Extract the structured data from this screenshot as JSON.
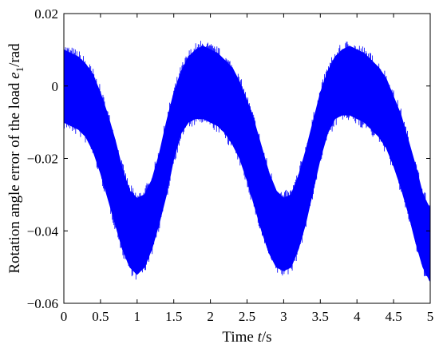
{
  "chart_data": {
    "type": "line",
    "xlabel": {
      "prefix": "Time ",
      "var": "t",
      "suffix": "/s"
    },
    "ylabel": {
      "prefix": "Rotation angle error of the load ",
      "var": "e",
      "sub": "1",
      "suffix": "/rad"
    },
    "xlim": [
      0,
      5
    ],
    "ylim": [
      -0.06,
      0.02
    ],
    "x_ticks": [
      0,
      0.5,
      1,
      1.5,
      2,
      2.5,
      3,
      3.5,
      4,
      4.5,
      5
    ],
    "x_tick_labels": [
      "0",
      "0.5",
      "1",
      "1.5",
      "2",
      "2.5",
      "3",
      "3.5",
      "4",
      "4.5",
      "5"
    ],
    "y_ticks": [
      0.02,
      0,
      -0.02,
      -0.04,
      -0.06
    ],
    "y_tick_labels": [
      "0.02",
      "0",
      "−0.02",
      "−0.04",
      "−0.06"
    ],
    "grid": false,
    "series": [
      {
        "color": "#0000ff",
        "band": {
          "x": [
            0.0,
            0.1,
            0.2,
            0.3,
            0.4,
            0.5,
            0.6,
            0.7,
            0.8,
            0.9,
            1.0,
            1.1,
            1.2,
            1.3,
            1.4,
            1.5,
            1.6,
            1.7,
            1.8,
            1.9,
            2.0,
            2.1,
            2.2,
            2.3,
            2.4,
            2.5,
            2.6,
            2.7,
            2.8,
            2.9,
            3.0,
            3.1,
            3.2,
            3.3,
            3.4,
            3.5,
            3.6,
            3.7,
            3.8,
            3.9,
            4.0,
            4.1,
            4.2,
            4.3,
            4.4,
            4.5,
            4.6,
            4.7,
            4.8,
            4.9,
            5.0
          ],
          "upper": [
            0.01,
            0.009,
            0.008,
            0.006,
            0.003,
            -0.002,
            -0.008,
            -0.015,
            -0.023,
            -0.029,
            -0.031,
            -0.03,
            -0.026,
            -0.019,
            -0.01,
            -0.002,
            0.004,
            0.008,
            0.01,
            0.011,
            0.01,
            0.009,
            0.007,
            0.005,
            0.001,
            -0.004,
            -0.01,
            -0.017,
            -0.024,
            -0.029,
            -0.031,
            -0.03,
            -0.025,
            -0.018,
            -0.01,
            -0.002,
            0.004,
            0.008,
            0.01,
            0.011,
            0.01,
            0.009,
            0.007,
            0.005,
            0.002,
            -0.003,
            -0.008,
            -0.015,
            -0.022,
            -0.03,
            -0.034
          ],
          "lower": [
            -0.01,
            -0.011,
            -0.012,
            -0.014,
            -0.018,
            -0.024,
            -0.031,
            -0.038,
            -0.045,
            -0.05,
            -0.052,
            -0.05,
            -0.045,
            -0.038,
            -0.03,
            -0.02,
            -0.013,
            -0.01,
            -0.009,
            -0.009,
            -0.01,
            -0.011,
            -0.013,
            -0.016,
            -0.02,
            -0.026,
            -0.033,
            -0.04,
            -0.046,
            -0.05,
            -0.051,
            -0.05,
            -0.045,
            -0.038,
            -0.029,
            -0.02,
            -0.013,
            -0.009,
            -0.008,
            -0.008,
            -0.009,
            -0.01,
            -0.012,
            -0.014,
            -0.017,
            -0.022,
            -0.028,
            -0.035,
            -0.043,
            -0.05,
            -0.054
          ]
        }
      }
    ]
  }
}
